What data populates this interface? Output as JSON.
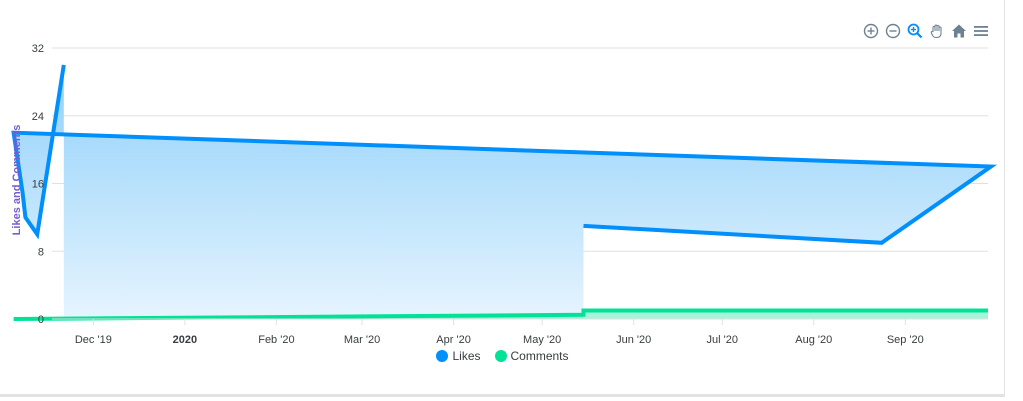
{
  "toolbar": {
    "items": [
      {
        "name": "zoom-in-icon"
      },
      {
        "name": "zoom-out-icon"
      },
      {
        "name": "selection-zoom-icon"
      },
      {
        "name": "pan-icon"
      },
      {
        "name": "reset-home-icon"
      },
      {
        "name": "menu-icon"
      }
    ]
  },
  "colors": {
    "likes": "#008FFB",
    "likes_fill_top": "#8fd0fa",
    "likes_fill_bottom": "#e6f4fe",
    "comments": "#00E396",
    "ylabel": "#775DD0",
    "grid": "#e0e0e0",
    "icon": "#6e8192",
    "icon_active": "#008FFB"
  },
  "chart_data": {
    "type": "area",
    "ylabel": "Likes and Comments",
    "ylim": [
      0,
      32
    ],
    "y_ticks": [
      "0",
      "8",
      "16",
      "24",
      "32"
    ],
    "x_tick_labels": [
      {
        "label": "Dec '19",
        "date": "2019-12-01",
        "bold": false
      },
      {
        "label": "2020",
        "date": "2020-01-01",
        "bold": true
      },
      {
        "label": "Feb '20",
        "date": "2020-02-01",
        "bold": false
      },
      {
        "label": "Mar '20",
        "date": "2020-03-01",
        "bold": false
      },
      {
        "label": "Apr '20",
        "date": "2020-04-01",
        "bold": false
      },
      {
        "label": "May '20",
        "date": "2020-05-01",
        "bold": false
      },
      {
        "label": "Jun '20",
        "date": "2020-06-01",
        "bold": false
      },
      {
        "label": "Jul '20",
        "date": "2020-07-01",
        "bold": false
      },
      {
        "label": "Aug '20",
        "date": "2020-08-01",
        "bold": false
      },
      {
        "label": "Sep '20",
        "date": "2020-09-01",
        "bold": false
      }
    ],
    "x_range": [
      "2019-11-17",
      "2020-09-29"
    ],
    "grid": true,
    "legend": "bottom-center",
    "series": [
      {
        "name": "Likes",
        "points": [
          {
            "x": "2019-11-21",
            "y": 0
          },
          {
            "x": "2019-11-21",
            "y": 30
          },
          {
            "x": "2019-11-12",
            "y": 10
          },
          {
            "x": "2019-11-08",
            "y": 12
          },
          {
            "x": "2019-11-07",
            "y": 15
          },
          {
            "x": "2019-11-04",
            "y": 22
          },
          {
            "x": "2020-09-30",
            "y": 18
          },
          {
            "x": "2020-08-24",
            "y": 9
          },
          {
            "x": "2020-05-15",
            "y": 11
          },
          {
            "x": "2020-05-15",
            "y": 0
          }
        ]
      },
      {
        "name": "Comments",
        "points": [
          {
            "x": "2019-11-04",
            "y": 0
          },
          {
            "x": "2020-05-15",
            "y": 0.5
          },
          {
            "x": "2020-05-15",
            "y": 1
          },
          {
            "x": "2020-09-29",
            "y": 1
          }
        ]
      }
    ]
  }
}
